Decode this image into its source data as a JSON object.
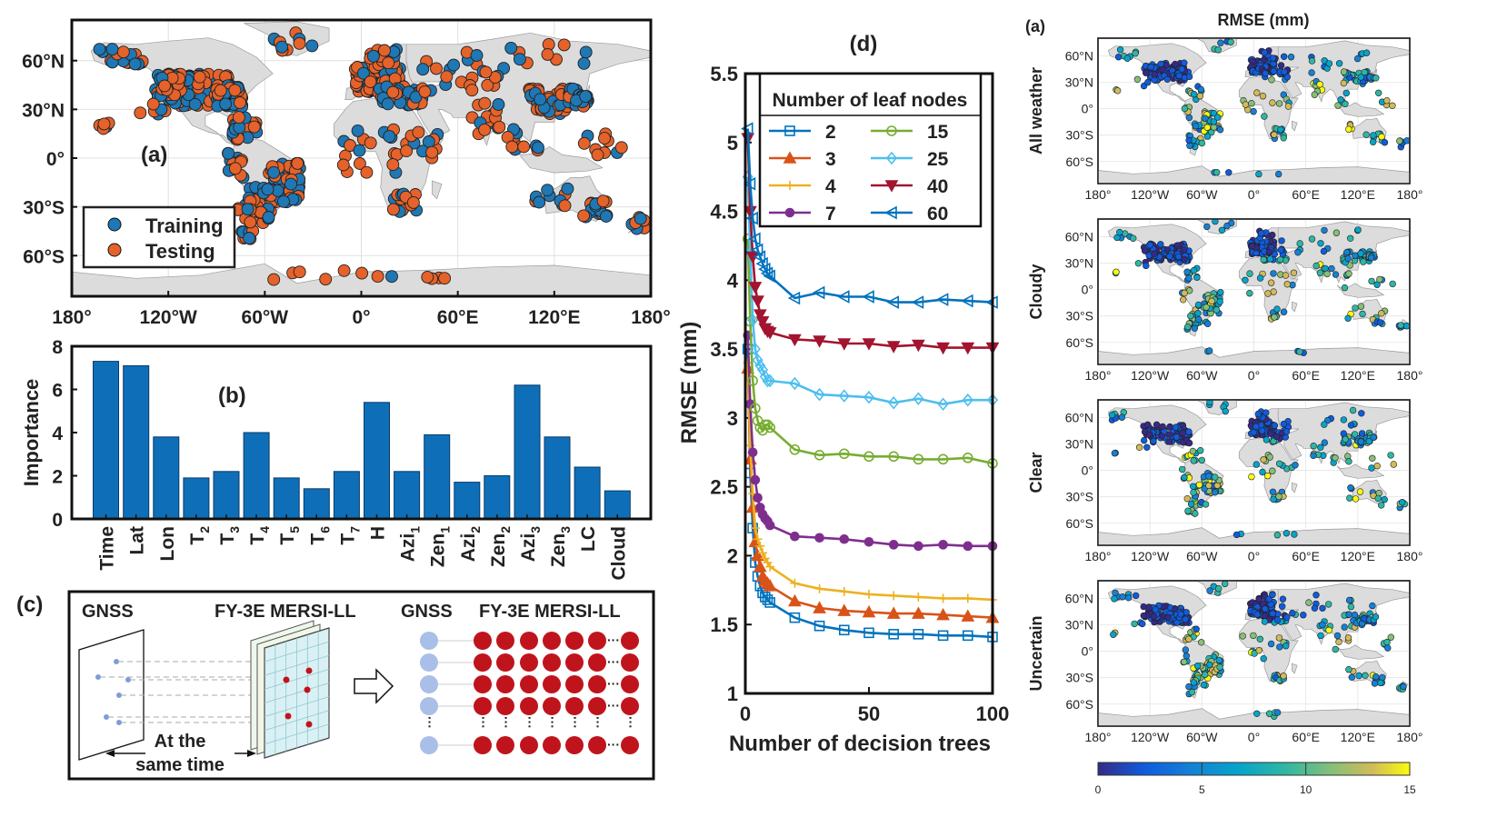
{
  "panel_a": {
    "label": "(a)",
    "legend": {
      "training": "Training",
      "testing": "Testing"
    },
    "lon_ticks": [
      "180°",
      "120°W",
      "60°W",
      "0°",
      "60°E",
      "120°E",
      "180°"
    ],
    "lat_ticks": [
      "60°N",
      "30°N",
      "0°",
      "30°S",
      "60°S"
    ],
    "colors": {
      "training": "#1f77b4",
      "testing": "#e5622a",
      "land": "#dcdcdc"
    }
  },
  "panel_b": {
    "label": "(b)",
    "ylabel": "Importance"
  },
  "panel_c": {
    "label": "(c)",
    "gnss_left": "GNSS",
    "fy3e_left": "FY-3E MERSI-LL",
    "gnss_right": "GNSS",
    "fy3e_right": "FY-3E MERSI-LL",
    "same_time_1": "At the",
    "same_time_2": "same time",
    "ellipsis": "···"
  },
  "panel_d": {
    "label": "(d)",
    "legend_title": "Number of leaf nodes"
  },
  "panel_e": {
    "label": "(a)",
    "title": "RMSE (mm)",
    "rows": [
      "All weather",
      "Cloudy",
      "Clear",
      "Uncertain"
    ],
    "lon_ticks": [
      "180°",
      "120°W",
      "60°W",
      "0°",
      "60°E",
      "120°E",
      "180°"
    ],
    "lat_ticks": [
      "60°N",
      "30°N",
      "0°",
      "30°S",
      "60°S"
    ],
    "colorbar_ticks": [
      "0",
      "5",
      "10",
      "15"
    ]
  },
  "chart_data": [
    {
      "type": "bar",
      "title": "(b)",
      "xlabel": "",
      "ylabel": "Importance",
      "ylim": [
        0,
        8
      ],
      "yticks": [
        "0",
        "2",
        "4",
        "6",
        "8"
      ],
      "categories": [
        "Time",
        "Lat",
        "Lon",
        "T2",
        "T3",
        "T4",
        "T5",
        "T6",
        "T7",
        "H",
        "Azi1",
        "Zen1",
        "Azi2",
        "Zen2",
        "Azi3",
        "Zen3",
        "LC",
        "Cloud"
      ],
      "category_labels": [
        [
          "Time",
          ""
        ],
        [
          "Lat",
          ""
        ],
        [
          "Lon",
          ""
        ],
        [
          "T",
          "2"
        ],
        [
          "T",
          "3"
        ],
        [
          "T",
          "4"
        ],
        [
          "T",
          "5"
        ],
        [
          "T",
          "6"
        ],
        [
          "T",
          "7"
        ],
        [
          "H",
          ""
        ],
        [
          "Azi",
          "1"
        ],
        [
          "Zen",
          "1"
        ],
        [
          "Azi",
          "2"
        ],
        [
          "Zen",
          "2"
        ],
        [
          "Azi",
          "3"
        ],
        [
          "Zen",
          "3"
        ],
        [
          "LC",
          ""
        ],
        [
          "Cloud",
          ""
        ]
      ],
      "values": [
        7.3,
        7.1,
        3.8,
        1.9,
        2.2,
        4.0,
        1.9,
        1.4,
        2.2,
        5.4,
        2.2,
        3.9,
        1.7,
        2.0,
        6.2,
        3.8,
        2.4,
        1.3
      ],
      "color": "#0e6fb8"
    },
    {
      "type": "line",
      "title": "(d)",
      "xlabel": "Number of decision trees",
      "ylabel": "RMSE (mm)",
      "xlim": [
        0,
        100
      ],
      "ylim": [
        1,
        5.5
      ],
      "xticks": [
        "0",
        "50",
        "100"
      ],
      "yticks": [
        "1",
        "1.5",
        "2",
        "2.5",
        "3",
        "3.5",
        "4",
        "4.5",
        "5",
        "5.5"
      ],
      "legend_title": "Number of leaf nodes",
      "x": [
        1,
        2,
        3,
        4,
        5,
        6,
        7,
        8,
        9,
        10,
        20,
        30,
        40,
        50,
        60,
        70,
        80,
        90,
        100
      ],
      "series": [
        {
          "name": "2",
          "color": "#0072bd",
          "marker": "square",
          "values": [
            3.5,
            2.6,
            2.2,
            1.95,
            1.85,
            1.78,
            1.73,
            1.7,
            1.68,
            1.66,
            1.55,
            1.49,
            1.46,
            1.44,
            1.43,
            1.43,
            1.42,
            1.42,
            1.41
          ]
        },
        {
          "name": "3",
          "color": "#d95319",
          "marker": "triangle-up",
          "values": [
            3.36,
            2.7,
            2.35,
            2.1,
            2.0,
            1.92,
            1.85,
            1.82,
            1.8,
            1.78,
            1.67,
            1.62,
            1.6,
            1.59,
            1.58,
            1.58,
            1.57,
            1.56,
            1.55
          ]
        },
        {
          "name": "4",
          "color": "#edb120",
          "marker": "plus",
          "values": [
            3.4,
            2.8,
            2.45,
            2.2,
            2.12,
            2.07,
            2.02,
            1.98,
            1.95,
            1.92,
            1.8,
            1.76,
            1.74,
            1.72,
            1.71,
            1.7,
            1.69,
            1.69,
            1.68
          ]
        },
        {
          "name": "7",
          "color": "#7e2f8e",
          "marker": "circle-filled",
          "values": [
            3.6,
            3.1,
            2.75,
            2.55,
            2.42,
            2.35,
            2.3,
            2.27,
            2.25,
            2.22,
            2.14,
            2.13,
            2.12,
            2.1,
            2.08,
            2.07,
            2.08,
            2.07,
            2.07
          ]
        },
        {
          "name": "15",
          "color": "#77ac30",
          "marker": "circle-open",
          "values": [
            4.3,
            3.7,
            3.27,
            3.07,
            2.98,
            2.93,
            2.91,
            2.95,
            2.95,
            2.93,
            2.77,
            2.73,
            2.74,
            2.72,
            2.72,
            2.7,
            2.7,
            2.71,
            2.67
          ]
        },
        {
          "name": "25",
          "color": "#4dbeee",
          "marker": "diamond",
          "values": [
            4.75,
            4.2,
            3.71,
            3.5,
            3.42,
            3.38,
            3.35,
            3.3,
            3.27,
            3.27,
            3.25,
            3.17,
            3.16,
            3.15,
            3.11,
            3.14,
            3.1,
            3.13,
            3.13
          ]
        },
        {
          "name": "40",
          "color": "#a2142f",
          "marker": "triangle-down",
          "values": [
            5.03,
            4.5,
            4.17,
            3.95,
            3.85,
            3.75,
            3.7,
            3.65,
            3.63,
            3.62,
            3.57,
            3.56,
            3.54,
            3.54,
            3.52,
            3.53,
            3.51,
            3.51,
            3.51
          ]
        },
        {
          "name": "60",
          "color": "#0072bd",
          "marker": "triangle-left",
          "values": [
            5.1,
            4.7,
            4.45,
            4.3,
            4.22,
            4.17,
            4.12,
            4.08,
            4.05,
            4.03,
            3.87,
            3.91,
            3.88,
            3.88,
            3.84,
            3.84,
            3.86,
            3.85,
            3.84
          ]
        }
      ]
    }
  ]
}
